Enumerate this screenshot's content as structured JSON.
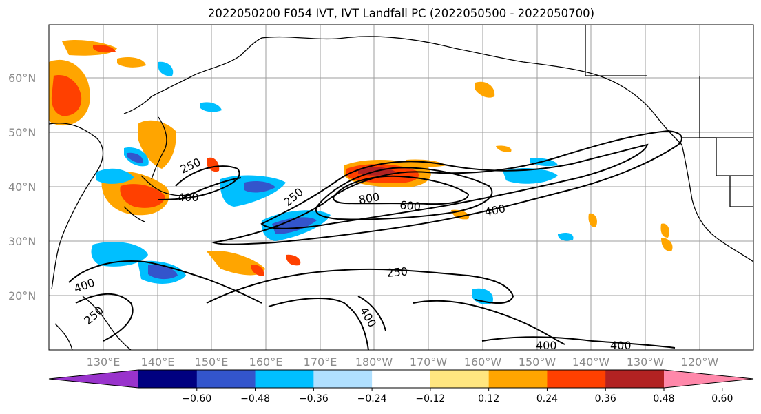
{
  "title": "2022050200 F054 IVT, IVT Landfall PC (2022050500 - 2022050700)",
  "lat_labels": [
    "60°N",
    "50°N",
    "40°N",
    "30°N",
    "20°N"
  ],
  "lon_labels": [
    "130°E",
    "140°E",
    "150°E",
    "160°E",
    "170°E",
    "180°W",
    "170°W",
    "160°W",
    "150°W",
    "140°W",
    "130°W",
    "120°W"
  ],
  "contour_labels": [
    "250",
    "400",
    "250",
    "800",
    "600",
    "400",
    "250",
    "400",
    "250",
    "400",
    "400",
    "400"
  ],
  "colorbar": {
    "ticks": [
      "−0.60",
      "−0.48",
      "−0.36",
      "−0.24",
      "−0.12",
      "0.12",
      "0.24",
      "0.36",
      "0.48",
      "0.60"
    ],
    "colors": [
      "#9933cc",
      "#000080",
      "#3355cc",
      "#00bfff",
      "#b0e0ff",
      "#ffffff",
      "#ffe680",
      "#ffa500",
      "#ff4000",
      "#b22222",
      "#ff88aa"
    ]
  }
}
